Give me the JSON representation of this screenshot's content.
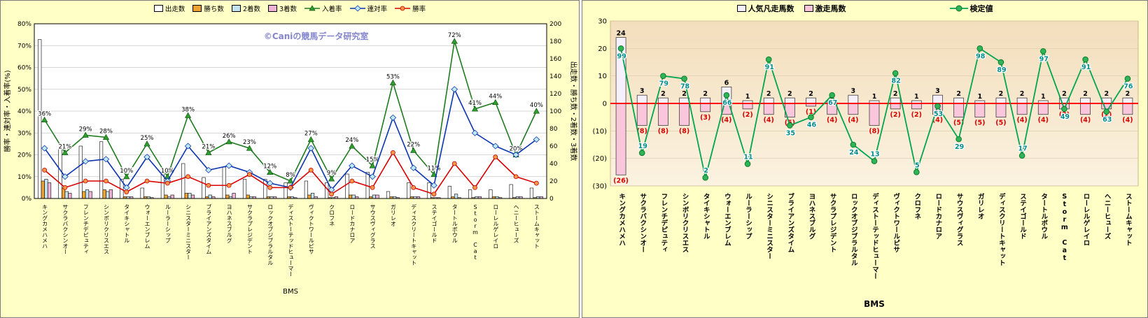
{
  "background": "#FFFFC6",
  "watermark": "©Caniの競馬データ研究室",
  "chart_data": [
    {
      "type": "bar+line",
      "title": "",
      "xlabel": "BMS",
      "ylabel_left": "勝率・連対率・入着率(%)",
      "ylabel_right": "出走数・勝ち数・2着数・3着数",
      "ylim_left": [
        0,
        80
      ],
      "ylim_right": [
        0,
        200
      ],
      "ytick_step_left": 10,
      "ytick_step_right": 20,
      "grid": true,
      "legend_position": "top",
      "categories": [
        "キングカメハメハ",
        "サクラバクシンオー",
        "フレンチデピュティ",
        "シンボリクリスエス",
        "タイキシャトル",
        "ウォーエンブレム",
        "ルーラーシップ",
        "シニスターミニスター",
        "ブライアンズタイム",
        "ヨハネスブルグ",
        "サクラプレジデント",
        "ロックオブジブラルタル",
        "ディストーテッドヒューマー",
        "ヴィクトワールピサ",
        "クロフネ",
        "ロードカナロア",
        "サウスヴィグラス",
        "ガリレオ",
        "ディスクリートキャット",
        "ステイゴールド",
        "タートルボウル",
        "Storm Cat",
        "ローレルゲレイロ",
        "ヘニーヒューズ",
        "ストームキャット"
      ],
      "bar_series": [
        {
          "name": "出走数",
          "color": "#FFFFFF",
          "values": [
            182,
            58,
            60,
            65,
            22,
            12,
            30,
            40,
            24,
            36,
            22,
            22,
            18,
            20,
            18,
            28,
            30,
            8,
            18,
            18,
            14,
            10,
            10,
            16,
            12
          ]
        },
        {
          "name": "勝ち数",
          "color": "#F0A330",
          "values": [
            20,
            12,
            8,
            10,
            2,
            2,
            4,
            6,
            2,
            4,
            4,
            2,
            2,
            4,
            1,
            4,
            2,
            2,
            2,
            1,
            2,
            1,
            2,
            1,
            1
          ]
        },
        {
          "name": "2着数",
          "color": "#C2E3F0",
          "values": [
            22,
            8,
            10,
            8,
            2,
            2,
            2,
            6,
            4,
            2,
            2,
            2,
            2,
            6,
            1,
            4,
            4,
            2,
            2,
            1,
            5,
            2,
            2,
            2,
            2
          ]
        },
        {
          "name": "3着数",
          "color": "#EFB3D5",
          "values": [
            18,
            6,
            8,
            10,
            2,
            1,
            4,
            4,
            2,
            6,
            2,
            2,
            1,
            2,
            2,
            2,
            4,
            1,
            2,
            1,
            1,
            2,
            1,
            2,
            2
          ]
        }
      ],
      "line_series": [
        {
          "name": "入着率",
          "color": "#1E7B1E",
          "marker": "triangle",
          "show_labels": true,
          "values": [
            36,
            21,
            29,
            28,
            10,
            25,
            10,
            38,
            21,
            26,
            23,
            12,
            8,
            27,
            9,
            24,
            15,
            53,
            22,
            11,
            72,
            41,
            44,
            20,
            40
          ]
        },
        {
          "name": "連対率",
          "color": "#0A35B0",
          "marker": "diamond",
          "show_labels": false,
          "values": [
            23,
            10,
            17,
            18,
            5,
            19,
            8,
            24,
            13,
            15,
            12,
            7,
            5,
            23,
            4,
            15,
            10,
            37,
            14,
            6,
            50,
            30,
            24,
            20,
            27
          ]
        },
        {
          "name": "勝率",
          "color": "#D90000",
          "marker": "circle",
          "show_labels": false,
          "values": [
            13,
            5,
            8,
            8,
            3,
            8,
            7,
            10,
            6,
            6,
            11,
            5,
            5,
            13,
            2,
            8,
            5,
            21,
            5,
            2,
            16,
            5,
            19,
            10,
            7
          ]
        }
      ]
    },
    {
      "type": "bar+line",
      "title": "",
      "xlabel": "BMS",
      "ylim": [
        -30,
        30
      ],
      "ytick_step": 10,
      "negative_tick_format": "parentheses",
      "grid": true,
      "zero_line_color": "#FF0000",
      "legend_position": "top",
      "categories": [
        "キングカメハメハ",
        "サクラバクシンオー",
        "フレンチデピュティ",
        "シンボリクリスエス",
        "タイキシャトル",
        "ウォーエンブレム",
        "ルーラーシップ",
        "シニスターミニスター",
        "ブライアンズタイム",
        "ヨハネスブルグ",
        "サクラプレジデント",
        "ロックオブジブラルタル",
        "ディストーテッドヒューマー",
        "ヴィクトワールピサ",
        "クロフネ",
        "ロードカナロア",
        "サウスヴィグラス",
        "ガリレオ",
        "ディスクリートキャット",
        "ステイゴールド",
        "タートルボウル",
        "Storm Cat",
        "ローレルゲレイロ",
        "ヘニーヒューズ",
        "ストームキャット"
      ],
      "bar_series": [
        {
          "name": "人気凡走馬数",
          "color": "#F5F0FB",
          "label_color": "#000000",
          "values": [
            24,
            3,
            2,
            2,
            2,
            6,
            1,
            2,
            2,
            2,
            1,
            3,
            1,
            2,
            1,
            3,
            2,
            1,
            2,
            2,
            1,
            2,
            2,
            2,
            2
          ]
        },
        {
          "name": "激走馬数",
          "color": "#F9C6DC",
          "label_color": "#D90000",
          "values": [
            -26,
            -8,
            -8,
            -8,
            -3,
            -4,
            -2,
            -4,
            -5,
            -1,
            -4,
            -4,
            -8,
            -2,
            -2,
            -4,
            -5,
            -5,
            -5,
            -4,
            -4,
            -2,
            -4,
            -2,
            -4
          ]
        }
      ],
      "line_series": [
        {
          "name": "検定値",
          "color": "#00A550",
          "marker": "circle",
          "label_color": "#008C8C",
          "values": [
            99,
            19,
            79,
            78,
            2,
            66,
            11,
            91,
            35,
            46,
            67,
            24,
            13,
            82,
            5,
            53,
            29,
            98,
            89,
            17,
            97,
            49,
            91,
            63,
            76
          ],
          "plot_y": [
            20,
            -18,
            10,
            9,
            -27,
            3,
            -22,
            16,
            -8,
            -5,
            3,
            -15,
            -21,
            11,
            -25,
            -1,
            -13,
            20,
            15,
            -19,
            19,
            -2,
            16,
            -3,
            9
          ]
        }
      ]
    }
  ]
}
